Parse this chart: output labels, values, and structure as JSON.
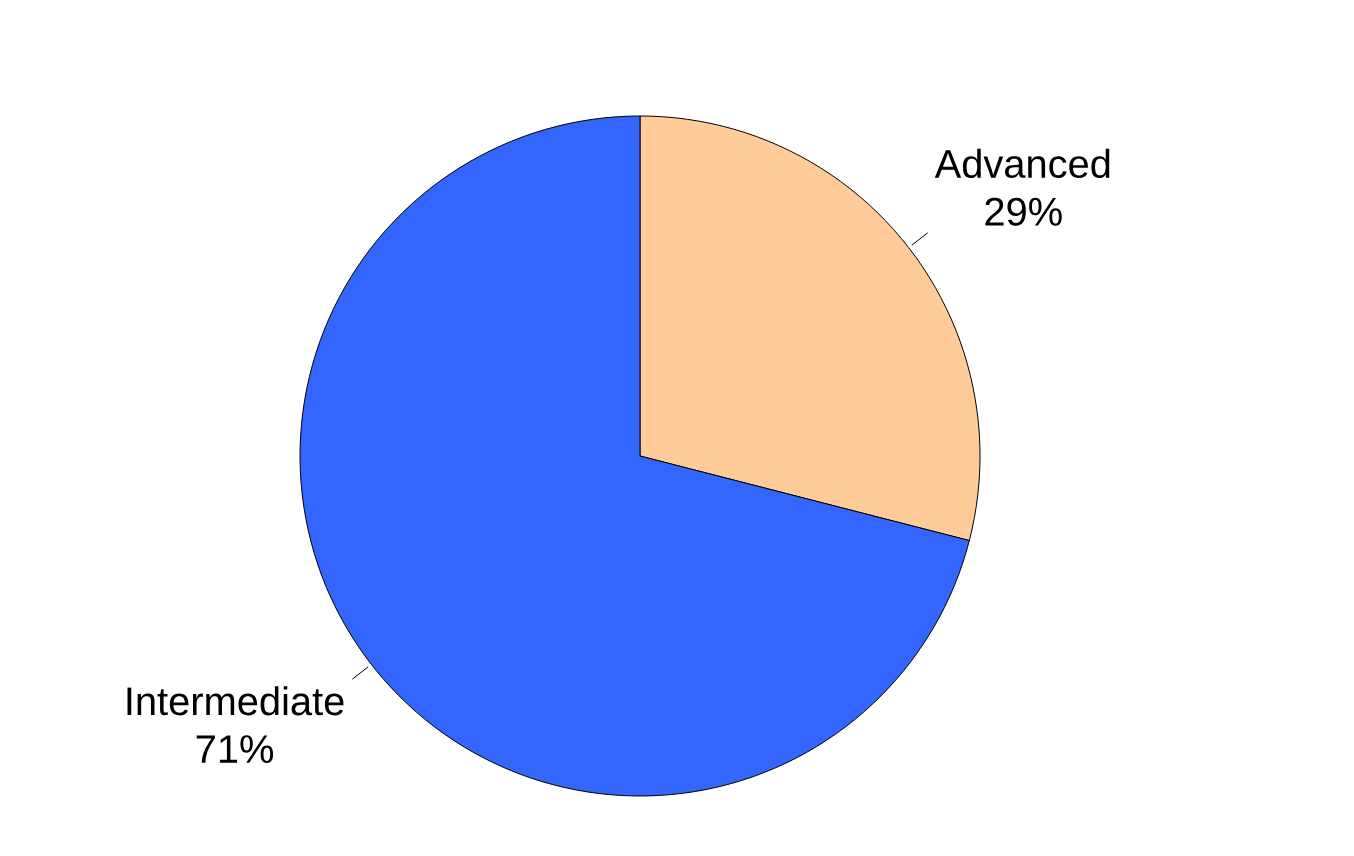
{
  "chart_data": {
    "type": "pie",
    "categories": [
      "Advanced",
      "Intermediate"
    ],
    "values": [
      29,
      71
    ],
    "value_labels": [
      "29%",
      "71%"
    ],
    "colors": [
      "#ffcc99",
      "#3366ff"
    ],
    "legend": false
  }
}
